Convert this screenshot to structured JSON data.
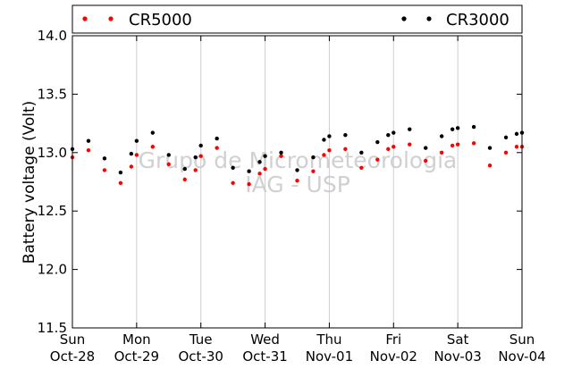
{
  "chart_data": {
    "type": "scatter",
    "title": "",
    "xlabel": "",
    "ylabel": "Battery voltage (Volt)",
    "ylim": [
      11.5,
      14.0
    ],
    "xlim": [
      "2012-10-28T00:00",
      "2012-11-04T00:00"
    ],
    "yticks": [
      "11.5",
      "12.0",
      "12.5",
      "13.0",
      "13.5",
      "14.0"
    ],
    "xticks": [
      {
        "day": "Sun",
        "date": "Oct-28"
      },
      {
        "day": "Mon",
        "date": "Oct-29"
      },
      {
        "day": "Tue",
        "date": "Oct-30"
      },
      {
        "day": "Wed",
        "date": "Oct-31"
      },
      {
        "day": "Thu",
        "date": "Nov-01"
      },
      {
        "day": "Fri",
        "date": "Nov-02"
      },
      {
        "day": "Sat",
        "date": "Nov-03"
      },
      {
        "day": "Sun",
        "date": "Nov-04"
      }
    ],
    "grid": "vertical",
    "legend_placement": "top",
    "watermark": [
      "Grupo de Micrometeorologia",
      "IAG - USP"
    ],
    "series": [
      {
        "name": "CR5000",
        "color": "#ff0000",
        "points": [
          [
            "2012-10-28T00:00",
            12.96
          ],
          [
            "2012-10-28T06:00",
            13.02
          ],
          [
            "2012-10-28T12:00",
            12.85
          ],
          [
            "2012-10-28T18:00",
            12.74
          ],
          [
            "2012-10-28T22:00",
            12.88
          ],
          [
            "2012-10-29T00:00",
            12.98
          ],
          [
            "2012-10-29T06:00",
            13.05
          ],
          [
            "2012-10-29T12:00",
            12.9
          ],
          [
            "2012-10-29T18:00",
            12.77
          ],
          [
            "2012-10-29T22:00",
            12.85
          ],
          [
            "2012-10-30T00:00",
            12.97
          ],
          [
            "2012-10-30T06:00",
            13.04
          ],
          [
            "2012-10-30T12:00",
            12.74
          ],
          [
            "2012-10-30T18:00",
            12.73
          ],
          [
            "2012-10-30T22:00",
            12.82
          ],
          [
            "2012-10-31T00:00",
            12.86
          ],
          [
            "2012-10-31T06:00",
            12.97
          ],
          [
            "2012-10-31T12:00",
            12.76
          ],
          [
            "2012-10-31T18:00",
            12.84
          ],
          [
            "2012-10-31T22:00",
            12.98
          ],
          [
            "2012-11-01T00:00",
            13.02
          ],
          [
            "2012-11-01T06:00",
            13.03
          ],
          [
            "2012-11-01T12:00",
            12.87
          ],
          [
            "2012-11-01T18:00",
            12.94
          ],
          [
            "2012-11-01T22:00",
            13.03
          ],
          [
            "2012-11-02T00:00",
            13.05
          ],
          [
            "2012-11-02T06:00",
            13.07
          ],
          [
            "2012-11-02T12:00",
            12.93
          ],
          [
            "2012-11-02T18:00",
            13.0
          ],
          [
            "2012-11-02T22:00",
            13.06
          ],
          [
            "2012-11-03T00:00",
            13.07
          ],
          [
            "2012-11-03T06:00",
            13.08
          ],
          [
            "2012-11-03T12:00",
            12.89
          ],
          [
            "2012-11-03T18:00",
            13.0
          ],
          [
            "2012-11-03T22:00",
            13.05
          ],
          [
            "2012-11-04T00:00",
            13.05
          ]
        ]
      },
      {
        "name": "CR3000",
        "color": "#000000",
        "points": [
          [
            "2012-10-28T00:00",
            13.03
          ],
          [
            "2012-10-28T06:00",
            13.1
          ],
          [
            "2012-10-28T12:00",
            12.95
          ],
          [
            "2012-10-28T18:00",
            12.83
          ],
          [
            "2012-10-28T22:00",
            12.99
          ],
          [
            "2012-10-29T00:00",
            13.1
          ],
          [
            "2012-10-29T06:00",
            13.17
          ],
          [
            "2012-10-29T12:00",
            12.98
          ],
          [
            "2012-10-29T18:00",
            12.86
          ],
          [
            "2012-10-29T22:00",
            12.96
          ],
          [
            "2012-10-30T00:00",
            13.06
          ],
          [
            "2012-10-30T06:00",
            13.12
          ],
          [
            "2012-10-30T12:00",
            12.87
          ],
          [
            "2012-10-30T18:00",
            12.84
          ],
          [
            "2012-10-30T22:00",
            12.92
          ],
          [
            "2012-10-31T00:00",
            12.97
          ],
          [
            "2012-10-31T06:00",
            13.0
          ],
          [
            "2012-10-31T12:00",
            12.85
          ],
          [
            "2012-10-31T18:00",
            12.96
          ],
          [
            "2012-10-31T22:00",
            13.11
          ],
          [
            "2012-11-01T00:00",
            13.14
          ],
          [
            "2012-11-01T06:00",
            13.15
          ],
          [
            "2012-11-01T12:00",
            13.0
          ],
          [
            "2012-11-01T18:00",
            13.09
          ],
          [
            "2012-11-01T22:00",
            13.15
          ],
          [
            "2012-11-02T00:00",
            13.17
          ],
          [
            "2012-11-02T06:00",
            13.2
          ],
          [
            "2012-11-02T12:00",
            13.04
          ],
          [
            "2012-11-02T18:00",
            13.14
          ],
          [
            "2012-11-02T22:00",
            13.2
          ],
          [
            "2012-11-03T00:00",
            13.21
          ],
          [
            "2012-11-03T06:00",
            13.22
          ],
          [
            "2012-11-03T12:00",
            13.04
          ],
          [
            "2012-11-03T18:00",
            13.13
          ],
          [
            "2012-11-03T22:00",
            13.16
          ],
          [
            "2012-11-04T00:00",
            13.17
          ]
        ]
      }
    ]
  }
}
